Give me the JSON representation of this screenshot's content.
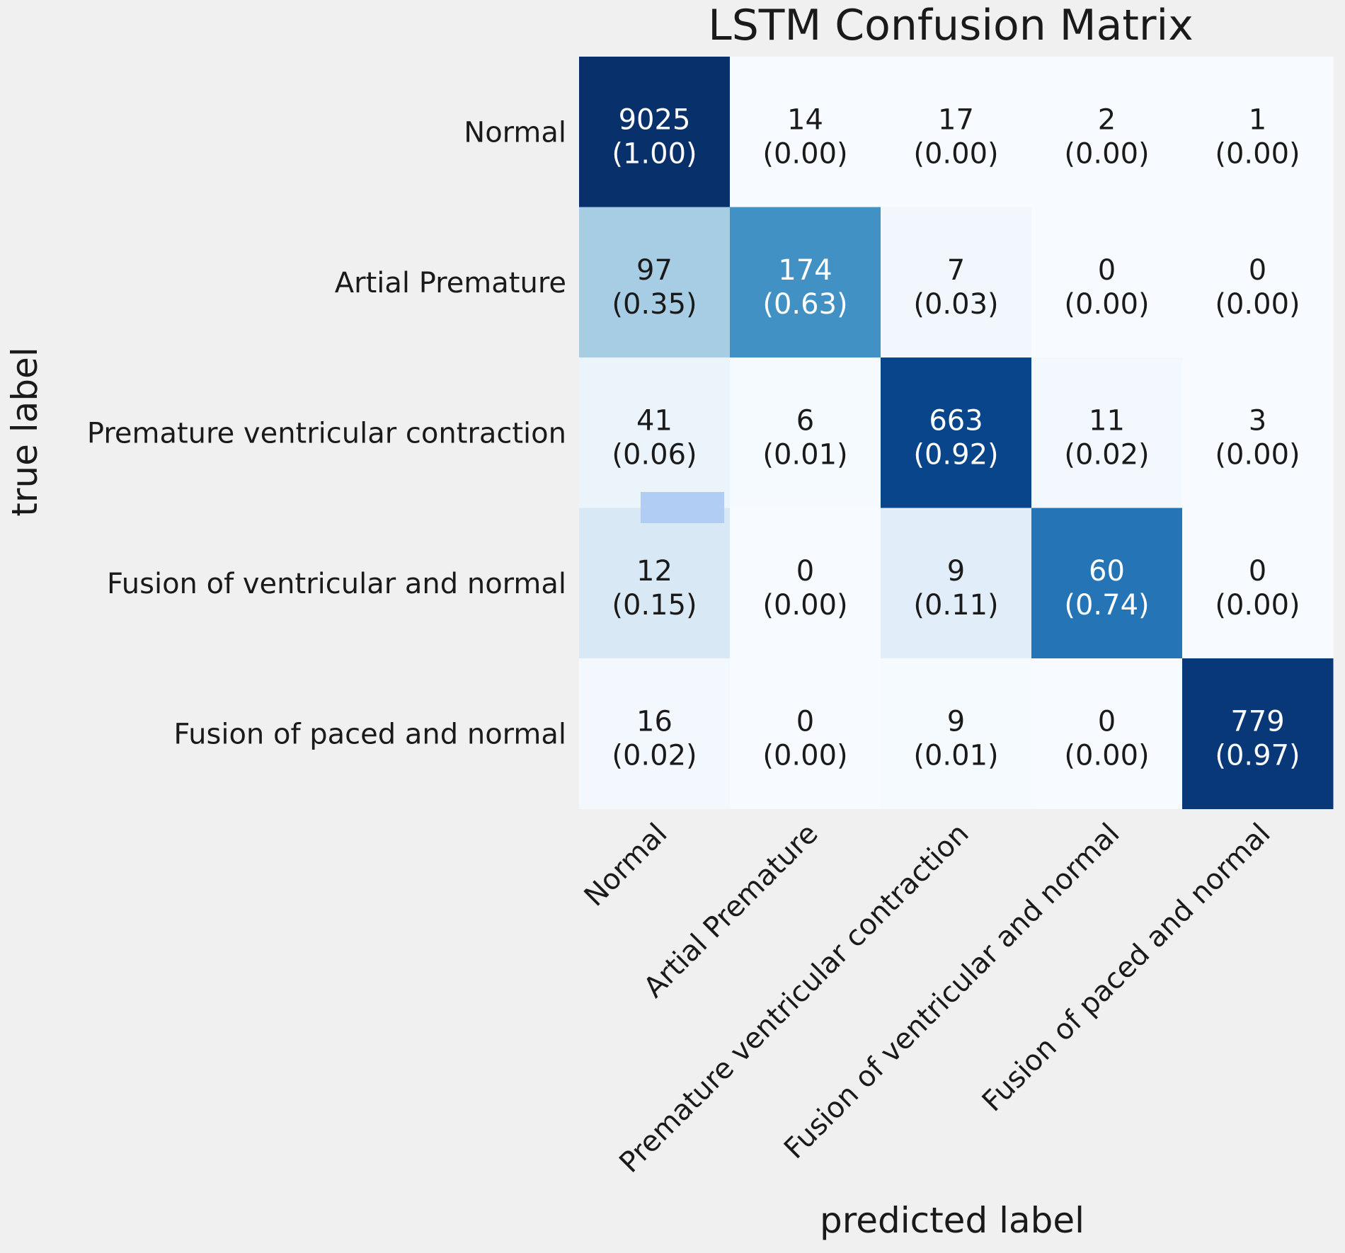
{
  "chart_data": {
    "type": "heatmap",
    "title": "LSTM Confusion Matrix",
    "xlabel": "predicted label",
    "ylabel": "true label",
    "x_categories": [
      "Normal",
      "Artial Premature",
      "Premature ventricular contraction",
      "Fusion of ventricular and normal",
      "Fusion of paced and normal"
    ],
    "y_categories": [
      "Normal",
      "Artial Premature",
      "Premature ventricular contraction",
      "Fusion of ventricular and normal",
      "Fusion of paced and normal"
    ],
    "counts": [
      [
        9025,
        14,
        17,
        2,
        1
      ],
      [
        97,
        174,
        7,
        0,
        0
      ],
      [
        41,
        6,
        663,
        11,
        3
      ],
      [
        12,
        0,
        9,
        60,
        0
      ],
      [
        16,
        0,
        9,
        0,
        779
      ]
    ],
    "normalized": [
      [
        "1.00",
        "0.00",
        "0.00",
        "0.00",
        "0.00"
      ],
      [
        "0.35",
        "0.63",
        "0.03",
        "0.00",
        "0.00"
      ],
      [
        "0.06",
        "0.01",
        "0.92",
        "0.02",
        "0.00"
      ],
      [
        "0.15",
        "0.00",
        "0.11",
        "0.74",
        "0.00"
      ],
      [
        "0.02",
        "0.00",
        "0.01",
        "0.00",
        "0.97"
      ]
    ],
    "colormap": "Blues",
    "grid": false,
    "colors": {
      "background": "#f0f0f0",
      "text_dark": "#1a1a1a",
      "text_light": "#ffffff",
      "artifact_patch": "#b1cdf4"
    }
  }
}
